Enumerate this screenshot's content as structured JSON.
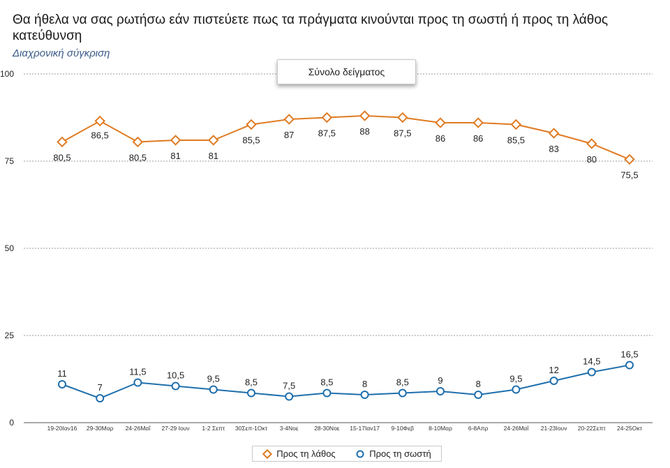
{
  "title": "Θα ήθελα να σας ρωτήσω εάν πιστεύετε πως τα πράγματα κινούνται προς τη σωστή ή προς τη λάθος κατεύθυνση",
  "subtitle": "Διαχρονική σύγκριση",
  "sample_label": "Σύνολο δείγματος",
  "colors": {
    "wrong": "#e07b22",
    "right": "#1f6fad",
    "grid": "#9a9a9a"
  },
  "chart_data": {
    "type": "line",
    "categories": [
      "19-20Ιαν16",
      "29-30Μαρ",
      "24-26Μαΐ",
      "27-29 Ιουν",
      "1-2 Σεπτ",
      "30Σεπ-1Οκτ",
      "3-4Νοε",
      "28-30Νοε",
      "15-17Ιαν17",
      "9-10Φεβ",
      "8-10Μαρ",
      "6-8Απρ",
      "24-26Μαΐ",
      "21-23Ιουν",
      "20-22Σεπτ",
      "24-25Οκτ"
    ],
    "series": [
      {
        "name": "Προς τη λάθος",
        "values": [
          80.5,
          86.5,
          80.5,
          81,
          81,
          85.5,
          87,
          87.5,
          88,
          87.5,
          86,
          86,
          85.5,
          83,
          80,
          75.5
        ],
        "labels": [
          "80,5",
          "86,5",
          "80,5",
          "81",
          "81",
          "85,5",
          "87",
          "87,5",
          "88",
          "87,5",
          "86",
          "86",
          "85,5",
          "83",
          "80",
          "75,5"
        ]
      },
      {
        "name": "Προς τη σωστή",
        "values": [
          11,
          7,
          11.5,
          10.5,
          9.5,
          8.5,
          7.5,
          8.5,
          8,
          8.5,
          9,
          8,
          9.5,
          12,
          14.5,
          16.5
        ],
        "labels": [
          "11",
          "7",
          "11,5",
          "10,5",
          "9,5",
          "8,5",
          "7,5",
          "8,5",
          "8",
          "8,5",
          "9",
          "8",
          "9,5",
          "12",
          "14,5",
          "16,5"
        ]
      }
    ],
    "yticks": [
      "0",
      "25",
      "50",
      "75",
      "100"
    ],
    "ylim": [
      0,
      100
    ],
    "grid": true,
    "legend": "bottom-center"
  }
}
